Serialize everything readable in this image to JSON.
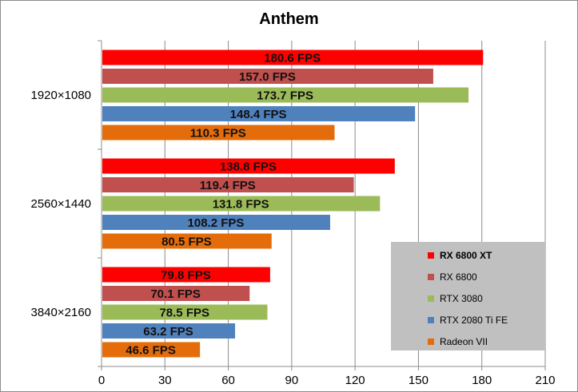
{
  "chart_data": {
    "type": "bar",
    "orientation": "horizontal",
    "title": "Anthem",
    "categories": [
      "1920×1080",
      "2560×1440",
      "3840×2160"
    ],
    "series": [
      {
        "name": "RX 6800 XT",
        "color": "#ff0000",
        "values": [
          180.6,
          138.8,
          79.8
        ],
        "labels": [
          "180.6 FPS",
          "138.8 FPS",
          "79.8 FPS"
        ]
      },
      {
        "name": "RX 6800",
        "color": "#c0504d",
        "values": [
          157.0,
          119.4,
          70.1
        ],
        "labels": [
          "157.0 FPS",
          "119.4 FPS",
          "70.1 FPS"
        ]
      },
      {
        "name": "RTX 3080",
        "color": "#9bbb59",
        "values": [
          173.7,
          131.8,
          78.5
        ],
        "labels": [
          "173.7 FPS",
          "131.8 FPS",
          "78.5 FPS"
        ]
      },
      {
        "name": "RTX 2080 Ti FE",
        "color": "#4f81bd",
        "values": [
          148.4,
          108.2,
          63.2
        ],
        "labels": [
          "148.4 FPS",
          "108.2 FPS",
          "63.2 FPS"
        ]
      },
      {
        "name": "Radeon VII",
        "color": "#e46c0a",
        "values": [
          110.3,
          80.5,
          46.6
        ],
        "labels": [
          "110.3 FPS",
          "80.5 FPS",
          "46.6 FPS"
        ]
      }
    ],
    "xlim": [
      0,
      210
    ],
    "xticks": [
      "0",
      "30",
      "60",
      "90",
      "120",
      "150",
      "180",
      "210"
    ],
    "grid": true,
    "legend_position": "bottom-right"
  }
}
